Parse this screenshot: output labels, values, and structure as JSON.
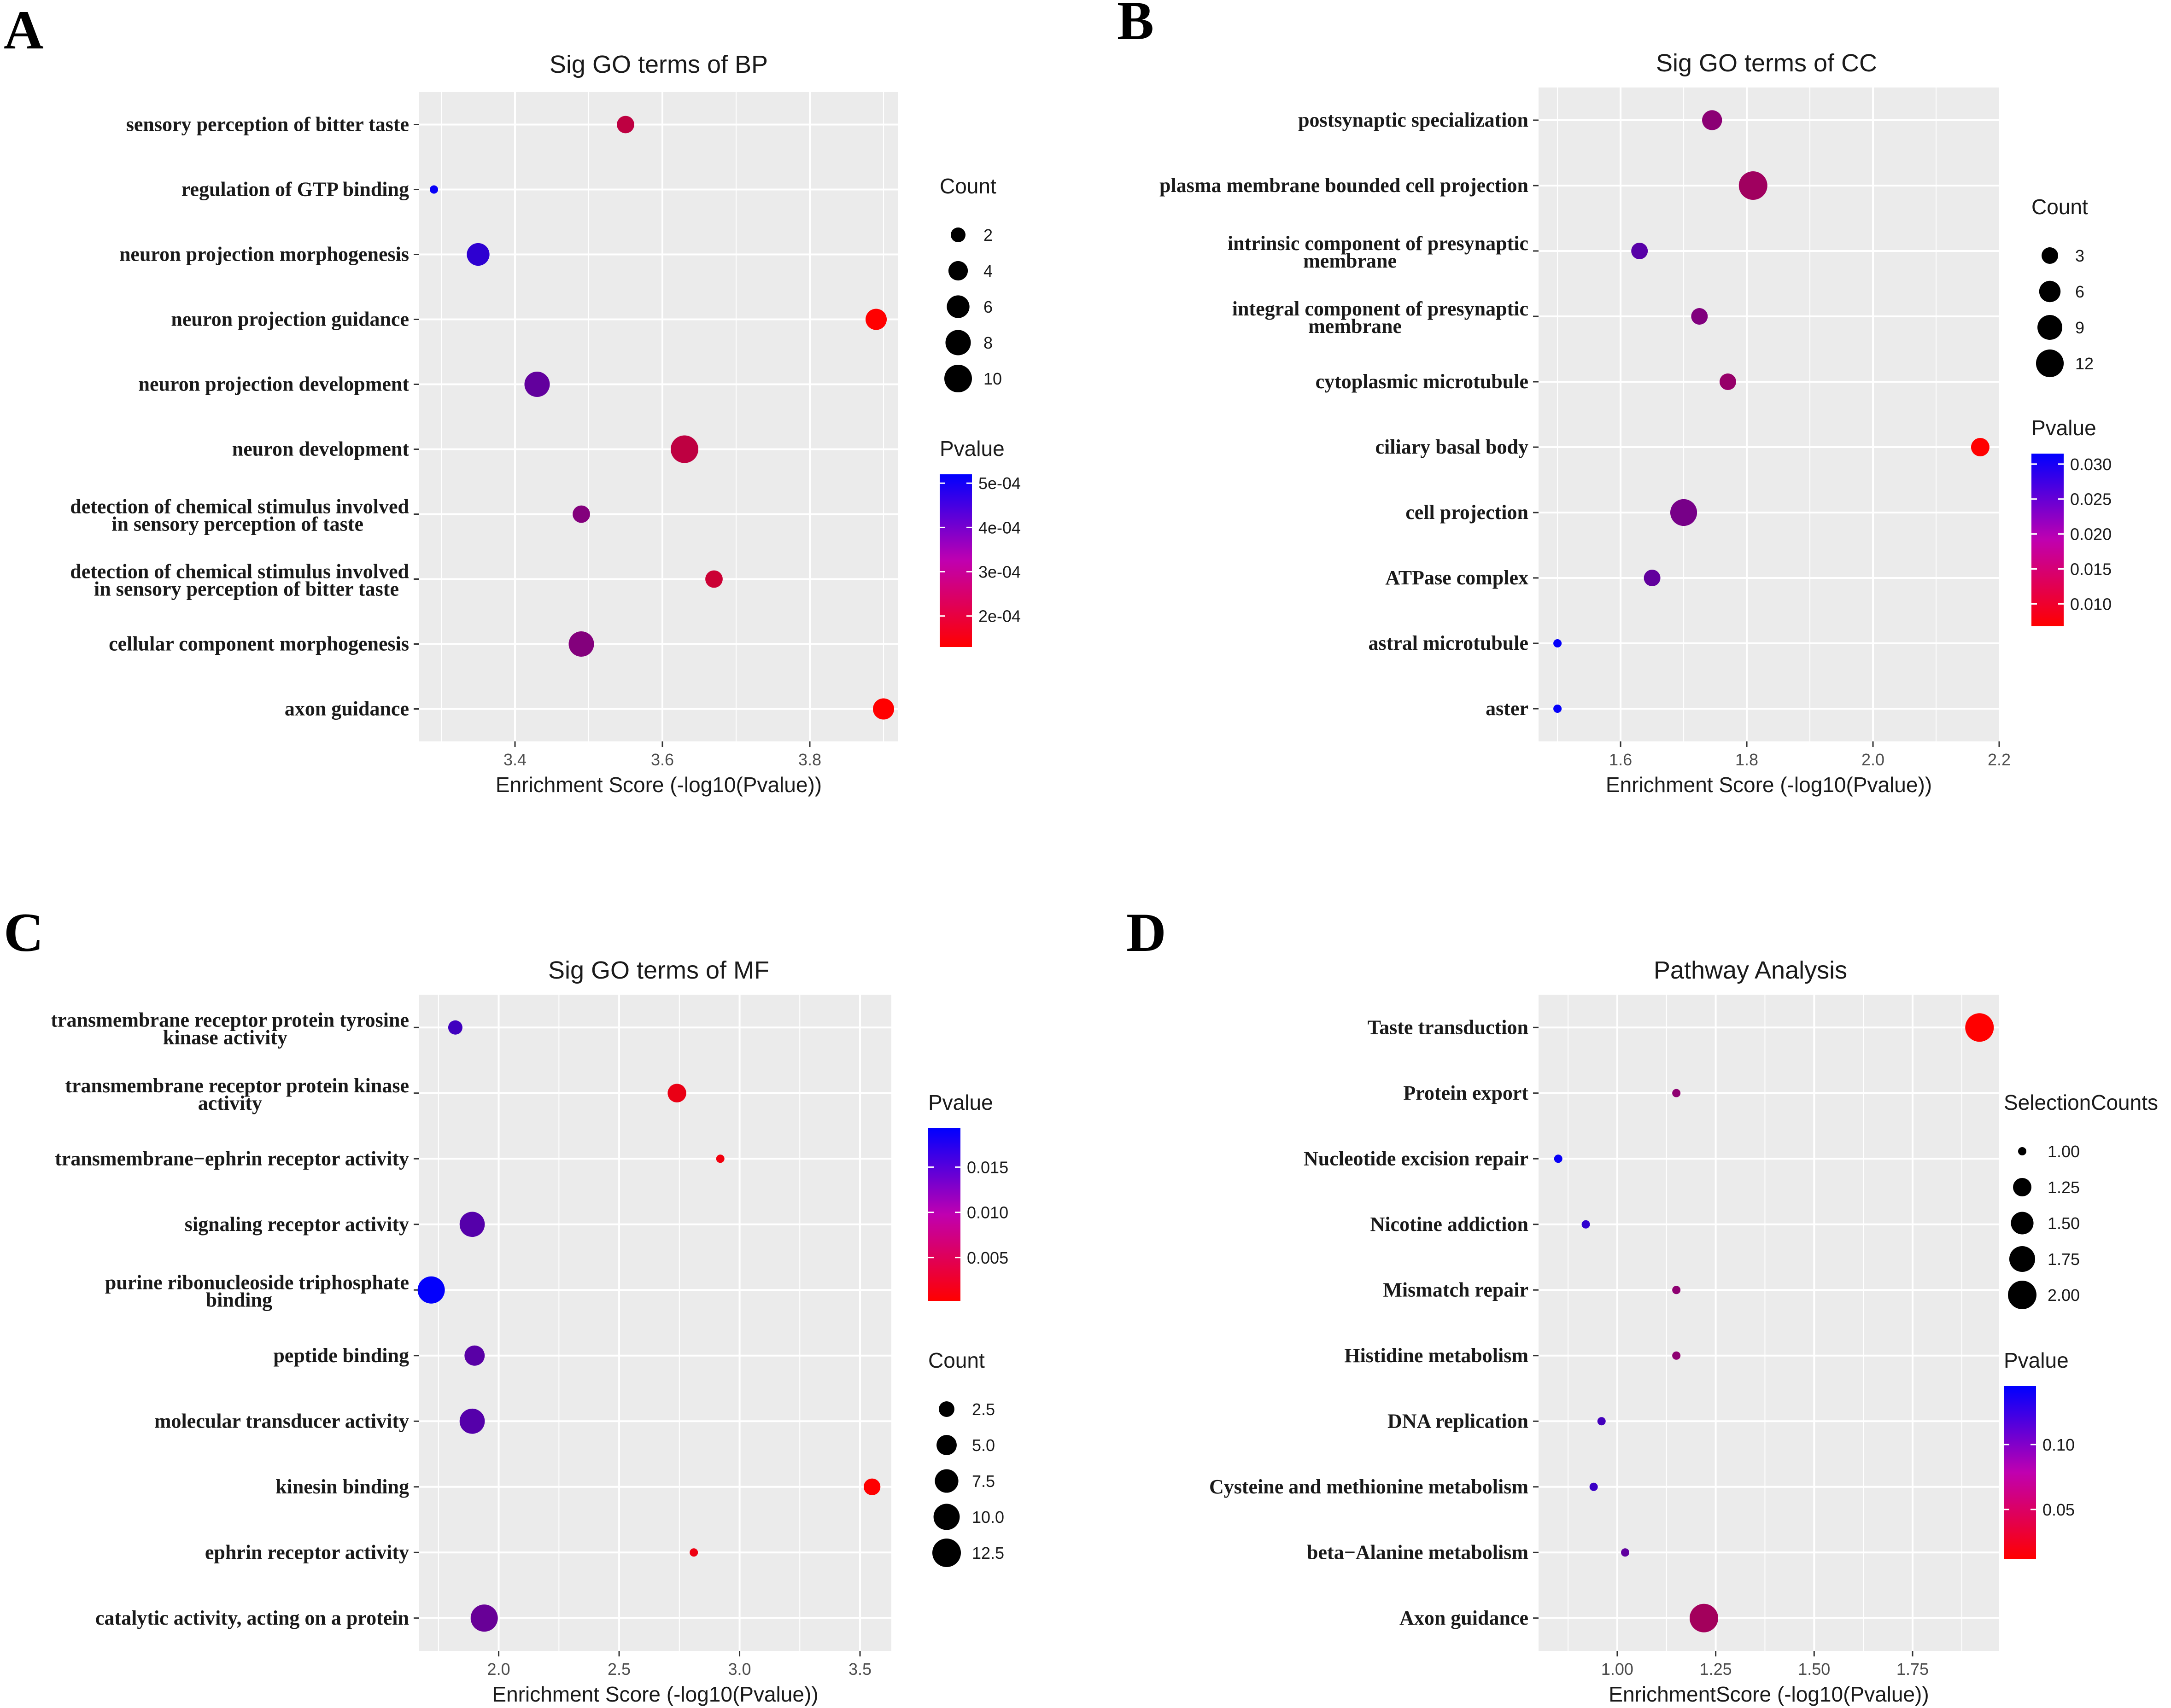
{
  "figure": {
    "panel_labels": [
      "A",
      "B",
      "C",
      "D"
    ]
  },
  "chart_data": [
    {
      "type": "scatter",
      "panel": "A",
      "title": "Sig GO terms of BP",
      "xlabel": "Enrichment Score (-log10(Pvalue))",
      "ylabel": "",
      "xlim": [
        3.27,
        3.92
      ],
      "xticks": [
        3.4,
        3.6,
        3.8
      ],
      "xtick_labels": [
        "3.4",
        "3.6",
        "3.8"
      ],
      "categories": [
        "sensory perception of bitter taste",
        "regulation of GTP binding",
        "neuron projection morphogenesis",
        "neuron projection guidance",
        "neuron projection development",
        "neuron development",
        "detection of chemical stimulus involved\nin sensory perception of taste",
        "detection of chemical stimulus involved\nin sensory perception of bitter taste",
        "cellular component morphogenesis",
        "axon guidance"
      ],
      "x": [
        3.55,
        3.29,
        3.35,
        3.89,
        3.43,
        3.63,
        3.49,
        3.67,
        3.49,
        3.9
      ],
      "size": [
        3,
        1,
        6,
        5,
        8,
        10,
        3,
        3,
        8,
        5
      ],
      "color_value": [
        0.00023,
        0.00051,
        0.00045,
        0.00013,
        0.00037,
        0.00023,
        0.00032,
        0.00021,
        0.00032,
        0.00013
      ],
      "size_legend": {
        "title": "Count",
        "values": [
          2,
          4,
          6,
          8,
          10
        ],
        "labels": [
          "2",
          "4",
          "6",
          "8",
          "10"
        ]
      },
      "color_legend": {
        "title": "Pvalue",
        "range": [
          0.00013,
          0.00052
        ],
        "low_color": "#ff0000",
        "high_color": "#0000ff",
        "ticks": [
          0.0005,
          0.0004,
          0.0003,
          0.0002
        ],
        "labels": [
          "5e-04",
          "4e-04",
          "3e-04",
          "2e-04"
        ]
      },
      "grid": true
    },
    {
      "type": "scatter",
      "panel": "B",
      "title": "Sig GO terms of CC",
      "xlabel": "Enrichment Score (-log10(Pvalue))",
      "ylabel": "",
      "xlim": [
        1.47,
        2.2
      ],
      "xticks": [
        1.6,
        1.8,
        2.0,
        2.2
      ],
      "xtick_labels": [
        "1.6",
        "1.8",
        "2.0",
        "2.2"
      ],
      "categories": [
        "postsynaptic specialization",
        "plasma membrane bounded cell projection",
        "intrinsic component of presynaptic\nmembrane",
        "integral component of presynaptic\nmembrane",
        "cytoplasmic microtubule",
        "ciliary basal body",
        "cell projection",
        "ATPase complex",
        "astral microtubule",
        "aster"
      ],
      "x": [
        1.745,
        1.81,
        1.63,
        1.725,
        1.77,
        2.17,
        1.7,
        1.65,
        1.5,
        1.5
      ],
      "size": [
        5,
        13,
        3,
        3,
        3,
        4,
        11,
        3,
        1,
        1
      ],
      "color_value": [
        0.018,
        0.016,
        0.023,
        0.019,
        0.017,
        0.0068,
        0.02,
        0.022,
        0.031,
        0.031
      ],
      "size_legend": {
        "title": "Count",
        "values": [
          3,
          6,
          9,
          12
        ],
        "labels": [
          "3",
          "6",
          "9",
          "12"
        ]
      },
      "color_legend": {
        "title": "Pvalue",
        "range": [
          0.0068,
          0.0315
        ],
        "low_color": "#ff0000",
        "high_color": "#0000ff",
        "ticks": [
          0.03,
          0.025,
          0.02,
          0.015,
          0.01
        ],
        "labels": [
          "0.030",
          "0.025",
          "0.020",
          "0.015",
          "0.010"
        ]
      },
      "grid": true
    },
    {
      "type": "scatter",
      "panel": "C",
      "title": "Sig GO terms of MF",
      "xlabel": "Enrichment Score (-log10(Pvalue))",
      "ylabel": "",
      "xlim": [
        1.67,
        3.63
      ],
      "xticks": [
        2.0,
        2.5,
        3.0,
        3.5
      ],
      "xtick_labels": [
        "2.0",
        "2.5",
        "3.0",
        "3.5"
      ],
      "categories": [
        "transmembrane receptor protein tyrosine\nkinase activity",
        "transmembrane receptor protein kinase\nactivity",
        "transmembrane−ephrin receptor activity",
        "signaling receptor activity",
        "purine ribonucleoside triphosphate\nbinding",
        "peptide binding",
        "molecular transducer activity",
        "kinesin binding",
        "ephrin receptor activity",
        "catalytic activity, acting on a protein"
      ],
      "x": [
        1.82,
        2.74,
        2.92,
        1.89,
        1.72,
        1.9,
        1.89,
        3.55,
        2.81,
        1.94
      ],
      "size": [
        2,
        4,
        1,
        9,
        11,
        5,
        9,
        3,
        1,
        11
      ],
      "color_value": [
        0.0145,
        0.0018,
        0.0012,
        0.0129,
        0.0191,
        0.0126,
        0.0129,
        0.0003,
        0.0015,
        0.0115
      ],
      "size_legend": {
        "title": "Count",
        "values": [
          2.5,
          5.0,
          7.5,
          10.0,
          12.5
        ],
        "labels": [
          "2.5",
          "5.0",
          "7.5",
          "10.0",
          "12.5"
        ]
      },
      "color_legend": {
        "title": "Pvalue",
        "range": [
          0.0002,
          0.0193
        ],
        "low_color": "#ff0000",
        "high_color": "#0000ff",
        "ticks": [
          0.015,
          0.01,
          0.005
        ],
        "labels": [
          "0.015",
          "0.010",
          "0.005"
        ]
      },
      "grid": true
    },
    {
      "type": "scatter",
      "panel": "D",
      "title": "Pathway Analysis",
      "xlabel": "EnrichmentScore (-log10(Pvalue))",
      "ylabel": "",
      "xlim": [
        0.8,
        1.97
      ],
      "xticks": [
        1.0,
        1.25,
        1.5,
        1.75
      ],
      "xtick_labels": [
        "1.00",
        "1.25",
        "1.50",
        "1.75"
      ],
      "categories": [
        "Taste transduction",
        "Protein export",
        "Nucleotide excision repair",
        "Nicotine addiction",
        "Mismatch repair",
        "Histidine metabolism",
        "DNA replication",
        "Cysteine and methionine metabolism",
        "beta−Alanine metabolism",
        "Axon guidance"
      ],
      "x": [
        1.92,
        1.15,
        0.85,
        0.92,
        1.15,
        1.15,
        0.96,
        0.94,
        1.02,
        1.22
      ],
      "size": [
        2,
        1,
        1,
        1,
        1,
        1,
        1,
        1,
        1,
        2
      ],
      "color_value": [
        0.012,
        0.071,
        0.141,
        0.12,
        0.071,
        0.071,
        0.11,
        0.115,
        0.095,
        0.06
      ],
      "size_legend": {
        "title": "SelectionCounts",
        "values": [
          1.0,
          1.25,
          1.5,
          1.75,
          2.0
        ],
        "labels": [
          "1.00",
          "1.25",
          "1.50",
          "1.75",
          "2.00"
        ]
      },
      "color_legend": {
        "title": "Pvalue",
        "range": [
          0.012,
          0.145
        ],
        "low_color": "#ff0000",
        "high_color": "#0000ff",
        "ticks": [
          0.1,
          0.05
        ],
        "labels": [
          "0.10",
          "0.05"
        ]
      },
      "grid": true
    }
  ]
}
